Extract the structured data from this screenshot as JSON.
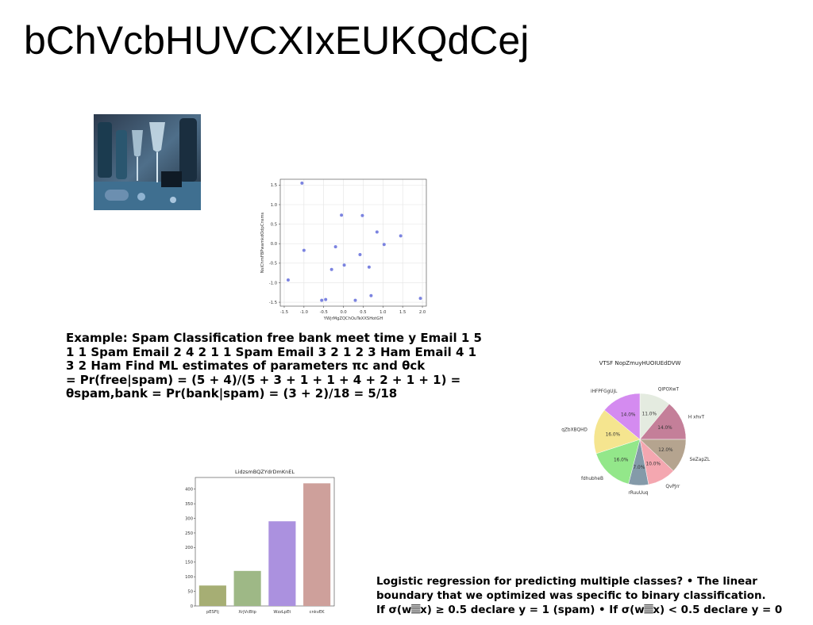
{
  "slide": {
    "title": "bChVcbHUVCXIxEUKQdCej",
    "photo_icon": "champagne-party-photo",
    "paragraph1": "Example: Spam Classification free bank meet time y Email 1 5\n1 1 Spam Email 2 4 2 1 1 Spam Email 3 2 1 2 3 Ham Email 4 1\n3 2 Ham Find ML estimates of parameters πc and θck\n= Pr(free|spam) = (5 + 4)/(5 + 3 + 1 + 1 + 4 + 2 + 1 + 1) =\nθspam,bank = Pr(bank|spam) = (3 + 2)/18 = 5/18",
    "paragraph2": "Logistic regression for predicting multiple classes? • The linear\nboundary that we optimized was specific to binary classification.\nIf σ(w𝄚x) ≥ 0.5 declare y = 1 (spam) • If σ(w𝄚x) < 0.5 declare y = 0"
  },
  "chart_data": [
    {
      "type": "scatter",
      "title": "",
      "xlabel": "YWjrMgZQChOuTeXXSHotGH",
      "ylabel": "NsiChmFBPwamkdOdpCnsms",
      "xlim": [
        -1.6,
        2.1
      ],
      "ylim": [
        -1.6,
        1.65
      ],
      "xticks": [
        "-1.5",
        "-1.0",
        "-0.5",
        "0.0",
        "0.5",
        "1.0",
        "1.5",
        "2.0"
      ],
      "xtick_values": [
        -1.5,
        -1.0,
        -0.5,
        0.0,
        0.5,
        1.0,
        1.5,
        2.0
      ],
      "yticks": [
        "-1.5",
        "-1.0",
        "-0.5",
        "0.0",
        "0.5",
        "1.0",
        "1.5"
      ],
      "ytick_values": [
        -1.5,
        -1.0,
        -0.5,
        0.0,
        0.5,
        1.0,
        1.5
      ],
      "grid": true,
      "color": "#7b83e0",
      "points": [
        [
          -1.4,
          -0.93
        ],
        [
          -1.05,
          1.55
        ],
        [
          -1.0,
          -0.17
        ],
        [
          -0.55,
          -1.45
        ],
        [
          -0.45,
          -1.43
        ],
        [
          -0.3,
          -0.66
        ],
        [
          -0.2,
          -0.08
        ],
        [
          -0.05,
          0.73
        ],
        [
          0.02,
          -0.55
        ],
        [
          0.3,
          -1.45
        ],
        [
          0.42,
          -0.28
        ],
        [
          0.48,
          0.72
        ],
        [
          0.65,
          -0.6
        ],
        [
          0.7,
          -1.33
        ],
        [
          0.85,
          0.3
        ],
        [
          1.03,
          -0.02
        ],
        [
          1.45,
          0.2
        ],
        [
          1.95,
          -1.4
        ]
      ]
    },
    {
      "type": "pie",
      "title": "VTSF NopZmuyHUOIUEdDVW",
      "labels": [
        "QIPOXwT",
        "H xhvT",
        "SeZapZL",
        "QvPJrr",
        "rRuuUuq",
        "fdhubheB",
        "qZbXBQHD",
        "iHFPFGgUjL"
      ],
      "values": [
        11.0,
        14.0,
        12.0,
        10.0,
        7.0,
        16.0,
        16.0,
        14.0
      ],
      "pct_labels": [
        "11.0%",
        "14.0%",
        "12.0%",
        "10.0%",
        "7.0%",
        "16.0%",
        "16.0%",
        "14.0%"
      ],
      "colors": [
        "#e4ebe0",
        "#c47f99",
        "#b5a48f",
        "#f4a7b0",
        "#849aa9",
        "#93e78a",
        "#f5e58f",
        "#d48bf0"
      ]
    },
    {
      "type": "bar",
      "title": "LidzsmBQZYdrDmKnEL",
      "categories": [
        "pESFIj",
        "XrjVcBtp",
        "WzzLpEt",
        "cnkvEK"
      ],
      "values": [
        70,
        120,
        290,
        420
      ],
      "ylim": [
        0,
        440
      ],
      "yticks": [
        "0",
        "50",
        "100",
        "150",
        "200",
        "250",
        "300",
        "350",
        "400"
      ],
      "ytick_values": [
        0,
        50,
        100,
        150,
        200,
        250,
        300,
        350,
        400
      ],
      "colors": [
        "#a6ae74",
        "#9eb886",
        "#ab91df",
        "#cea09b"
      ],
      "grid": false
    }
  ]
}
